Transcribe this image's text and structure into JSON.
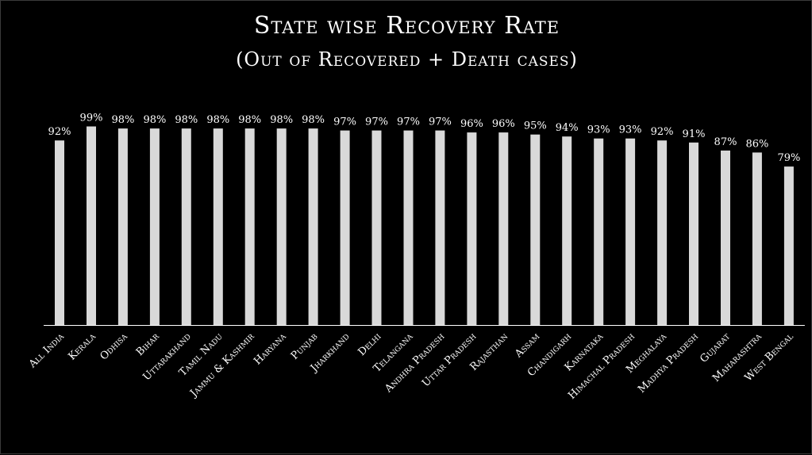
{
  "chart_data": {
    "type": "bar",
    "title": "State wise Recovery Rate",
    "subtitle": "(Out of Recovered + Death cases)",
    "xlabel": "",
    "ylabel": "",
    "ylim": [
      0,
      100
    ],
    "grid": false,
    "legend": "none",
    "categories": [
      "All India",
      "Kerala",
      "Odhisa",
      "Bihar",
      "Uttarakhand",
      "Tamil Nadu",
      "Jammu & Kashmir",
      "Haryana",
      "Punjab",
      "Jharkhand",
      "Delhi",
      "Telangana",
      "Andhra Pradesh",
      "Uttar Pradesh",
      "Rajasthan",
      "Assam",
      "Chandigarh",
      "Karnataka",
      "Himachal Pradesh",
      "Meghalaya",
      "Madhya Pradesh",
      "Gujarat",
      "Maharashtra",
      "West Bengal"
    ],
    "values": [
      92,
      99,
      98,
      98,
      98,
      98,
      98,
      98,
      98,
      97,
      97,
      97,
      97,
      96,
      96,
      95,
      94,
      93,
      93,
      92,
      91,
      87,
      86,
      79
    ],
    "data_labels": [
      "92%",
      "99%",
      "98%",
      "98%",
      "98%",
      "98%",
      "98%",
      "98%",
      "98%",
      "97%",
      "97%",
      "97%",
      "97%",
      "96%",
      "96%",
      "95%",
      "94%",
      "93%",
      "93%",
      "92%",
      "91%",
      "87%",
      "86%",
      "79%"
    ],
    "colors": {
      "bar": "#d9d9d9",
      "background": "#000000",
      "axis": "#ffffff",
      "text": "#ffffff"
    }
  }
}
